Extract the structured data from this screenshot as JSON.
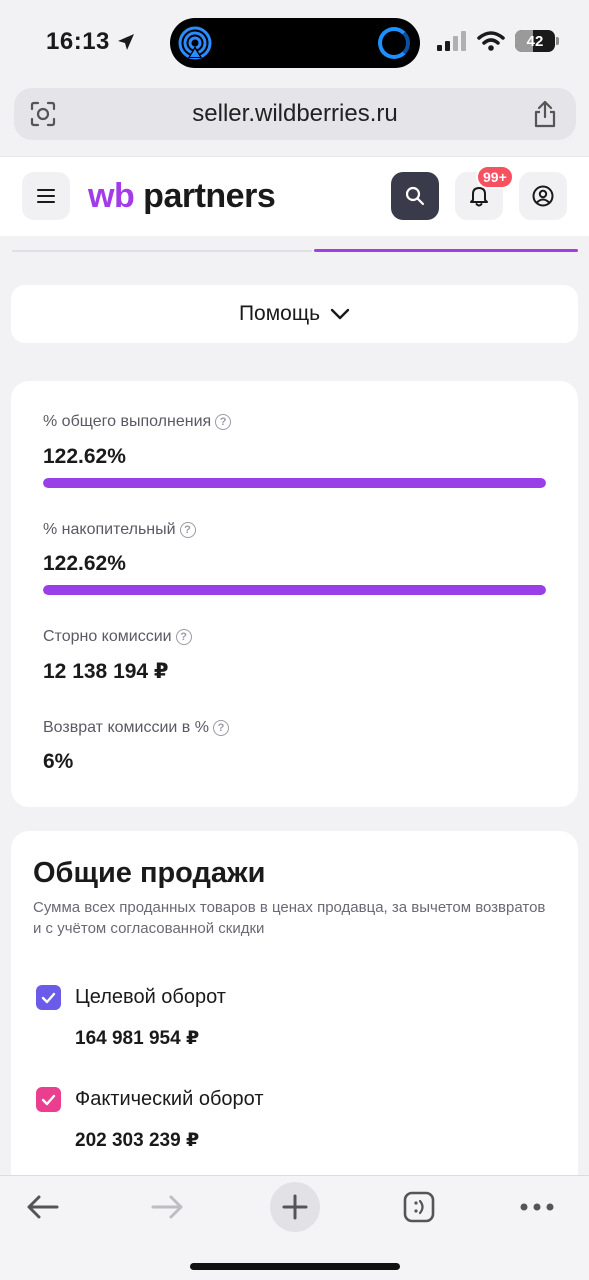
{
  "status_bar": {
    "time": "16:13",
    "battery": "42"
  },
  "browser": {
    "url": "seller.wildberries.ru"
  },
  "header": {
    "logo_wb": "wb",
    "logo_partners": "partners",
    "notifications_badge": "99+"
  },
  "help": {
    "label": "Помощь"
  },
  "stats": [
    {
      "label": "% общего выполнения",
      "value": "122.62%",
      "progress_percent": 100
    },
    {
      "label": "% накопительный",
      "value": "122.62%",
      "progress_percent": 100
    },
    {
      "label": "Сторно комиссии",
      "value": "12 138 194 ₽"
    },
    {
      "label": "Возврат комиссии в %",
      "value": "6%"
    }
  ],
  "sales": {
    "title": "Общие продажи",
    "description": "Сумма всех проданных товаров в ценах продавца, за вычетом возвратов и с учётом согласованной скидки",
    "items": [
      {
        "label": "Целевой оборот",
        "value": "164 981 954 ₽",
        "checked": true,
        "color": "#6a5ce8"
      },
      {
        "label": "Фактический оборот",
        "value": "202 303 239 ₽",
        "checked": true,
        "color": "#ea3e8e"
      }
    ]
  },
  "colors": {
    "brand": "#a23be8",
    "progress": "#9a3ee8",
    "badge": "#f5515f"
  }
}
